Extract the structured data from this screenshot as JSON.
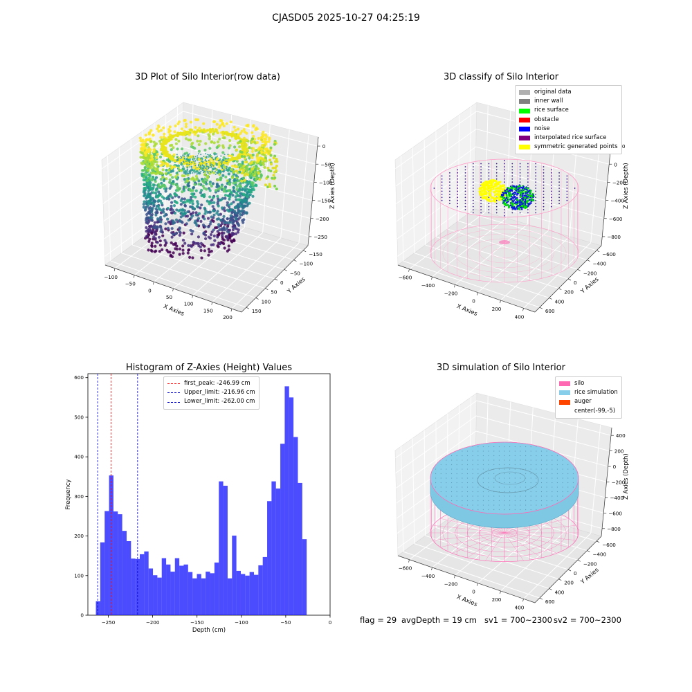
{
  "suptitle": "CJASD05 2025-10-27 04:25:19",
  "panels": {
    "raw": {
      "title": "3D Plot of Silo Interior(row data)",
      "xlabel": "X Axies",
      "ylabel": "Y Axies",
      "zlabel": "Z Axies (Depth)",
      "x_ticks": [
        "−100",
        "−50",
        "0",
        "50",
        "100",
        "150",
        "200"
      ],
      "y_ticks": [
        "150",
        "100",
        "50",
        "0",
        "−50",
        "−100",
        "−150"
      ],
      "z_ticks": [
        "0",
        "−50",
        "−100",
        "−150",
        "−200",
        "−250"
      ]
    },
    "classify": {
      "title": "3D classify of Silo Interior",
      "xlabel": "X Axies",
      "ylabel": "Y Axies",
      "zlabel": "Z Axies (Depth)",
      "x_ticks": [
        "−600",
        "−400",
        "−200",
        "0",
        "200",
        "400"
      ],
      "y_ticks": [
        "600",
        "400",
        "200",
        "0",
        "−200",
        "−400",
        "−600"
      ],
      "z_ticks": [
        "200",
        "0",
        "−200",
        "−400",
        "−600",
        "−800"
      ],
      "z_partial_tick": "0",
      "legend": [
        {
          "label": "original data",
          "color": "#b0b0b0"
        },
        {
          "label": "inner wall",
          "color": "#808080"
        },
        {
          "label": "rice surface",
          "color": "#00ff00"
        },
        {
          "label": "obstacle",
          "color": "#ff0000"
        },
        {
          "label": "noise",
          "color": "#0000ff"
        },
        {
          "label": "interpolated rice surface",
          "color": "#800080"
        },
        {
          "label": "symmetric generated points",
          "color": "#ffff00"
        }
      ]
    },
    "histogram": {
      "title": "Histogram of Z-Axies (Height) Values",
      "legend": [
        {
          "label": "first_peak: -246.99 cm",
          "color": "#ff0000"
        },
        {
          "label": "Upper_limit: -216.96 cm",
          "color": "#0000cc"
        },
        {
          "label": "Lower_limit: -262.00 cm",
          "color": "#0000cc"
        }
      ]
    },
    "simulation": {
      "title": "3D simulation of Silo Interior",
      "xlabel": "X Axies",
      "ylabel": "Y Axies",
      "zlabel": "Z Axies (Depth)",
      "x_ticks": [
        "−600",
        "−400",
        "−200",
        "0",
        "200",
        "400"
      ],
      "y_ticks": [
        "600",
        "400",
        "200",
        "0",
        "−200",
        "−400",
        "−600"
      ],
      "z_ticks": [
        "400",
        "200",
        "0",
        "−200",
        "−400",
        "−600",
        "−800"
      ],
      "legend": [
        {
          "label": "silo",
          "color": "#ff69b4"
        },
        {
          "label": "rice simulation",
          "color": "#87ceeb"
        },
        {
          "label": "auger",
          "color": "#ff4500"
        },
        {
          "label": "center(-99,-5)",
          "color": "#ffffff"
        }
      ]
    }
  },
  "status": {
    "flag": "flag = 29",
    "avg_depth": "avgDepth = 19 cm",
    "sv1": "sv1 = 700~2300",
    "sv2": "sv2 = 700~2300"
  },
  "chart_data": [
    {
      "type": "scatter",
      "title": "3D Plot of Silo Interior(row data)",
      "xlabel": "X Axies",
      "ylabel": "Y Axies",
      "zlabel": "Z Axies (Depth)",
      "xlim": [
        -130,
        200
      ],
      "ylim": [
        -150,
        150
      ],
      "zlim": [
        -270,
        0
      ],
      "colormap": "viridis",
      "grid": true
    },
    {
      "type": "scatter",
      "title": "3D classify of Silo Interior",
      "xlabel": "X Axies",
      "ylabel": "Y Axies",
      "zlabel": "Z Axies (Depth)",
      "xlim": [
        -600,
        450
      ],
      "ylim": [
        -650,
        650
      ],
      "zlim": [
        -900,
        300
      ],
      "series": [
        {
          "name": "original data",
          "color": "#b0b0b0"
        },
        {
          "name": "inner wall",
          "color": "#808080"
        },
        {
          "name": "rice surface",
          "color": "#00ff00"
        },
        {
          "name": "obstacle",
          "color": "#ff0000"
        },
        {
          "name": "noise",
          "color": "#0000ff"
        },
        {
          "name": "interpolated rice surface",
          "color": "#800080"
        },
        {
          "name": "symmetric generated points",
          "color": "#ffff00"
        }
      ],
      "legend_position": "top-right",
      "grid": true
    },
    {
      "type": "bar",
      "title": "Histogram of Z-Axies (Height) Values",
      "xlabel": "Depth (cm)",
      "ylabel": "Frequency",
      "bar_color": "#0000ff",
      "xlim": [
        -273,
        0
      ],
      "ylim": [
        0,
        610
      ],
      "x_ticks": [
        -250,
        -200,
        -150,
        -100,
        -50,
        0
      ],
      "y_ticks": [
        0,
        100,
        200,
        300,
        400,
        500,
        600
      ],
      "bin_left": -264,
      "bin_width": 4.95,
      "values": [
        35,
        184,
        263,
        353,
        262,
        255,
        213,
        187,
        143,
        142,
        154,
        161,
        118,
        101,
        95,
        144,
        128,
        110,
        144,
        125,
        128,
        109,
        93,
        104,
        93,
        110,
        106,
        133,
        338,
        327,
        93,
        201,
        112,
        104,
        100,
        109,
        102,
        126,
        147,
        288,
        338,
        320,
        433,
        578,
        550,
        450,
        334,
        192
      ],
      "vlines": [
        {
          "label": "first_peak: -246.99 cm",
          "x": -246.99,
          "color": "#ff0000"
        },
        {
          "label": "Upper_limit: -216.96 cm",
          "x": -216.96,
          "color": "#0000cc"
        },
        {
          "label": "Lower_limit: -262.00 cm",
          "x": -262.0,
          "color": "#0000cc"
        }
      ],
      "legend_position": "top-center"
    },
    {
      "type": "scatter",
      "title": "3D simulation of Silo Interior",
      "xlabel": "X Axies",
      "ylabel": "Y Axies",
      "zlabel": "Z Axies (Depth)",
      "xlim": [
        -600,
        450
      ],
      "ylim": [
        -650,
        650
      ],
      "zlim": [
        -900,
        450
      ],
      "series": [
        {
          "name": "silo",
          "color": "#ff69b4"
        },
        {
          "name": "rice simulation",
          "color": "#87ceeb"
        },
        {
          "name": "auger",
          "color": "#ff4500"
        },
        {
          "name": "center(-99,-5)",
          "color": "#ffffff"
        }
      ],
      "legend_position": "top-right",
      "grid": true
    }
  ]
}
